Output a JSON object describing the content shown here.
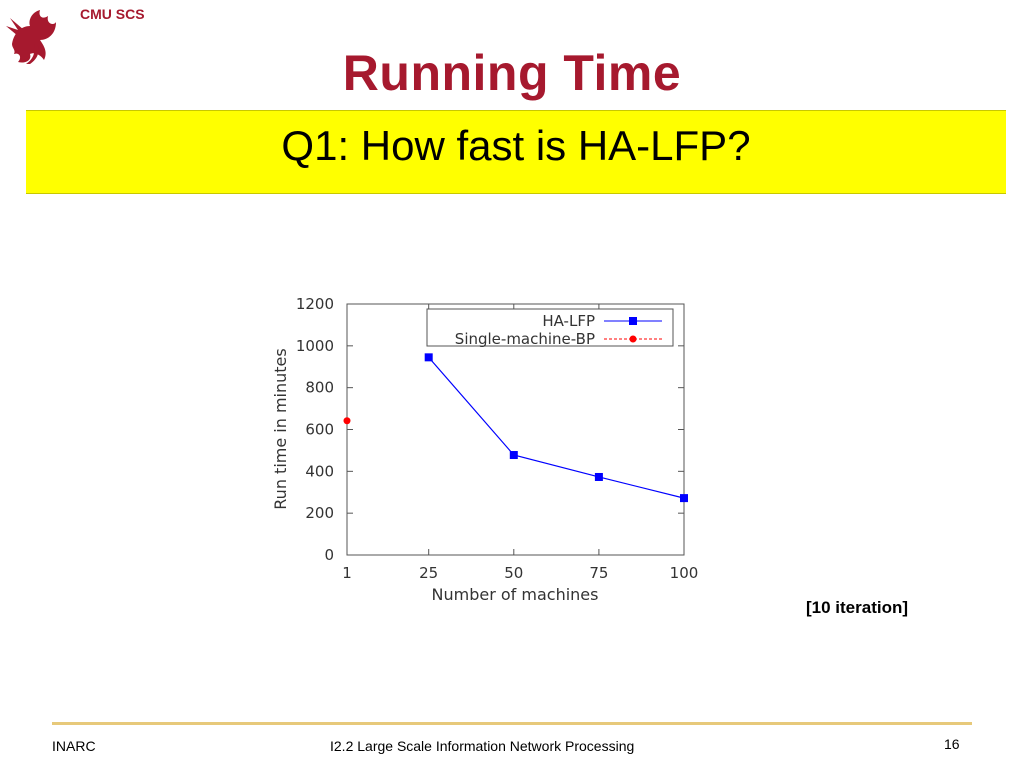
{
  "header": {
    "org": "CMU SCS",
    "title": "Running Time",
    "question": "Q1: How fast is HA-LFP?"
  },
  "colors": {
    "title": "#a6192e",
    "banner": "#ffff00",
    "rule": "#e7c97a",
    "ha_lfp": "#0000ff",
    "single_bp": "#ff0000"
  },
  "chart_data": {
    "type": "line",
    "xlabel": "Number of machines",
    "ylabel": "Run time in minutes",
    "x_ticks": [
      "1",
      "25",
      "50",
      "75",
      "100"
    ],
    "y_ticks": [
      "0",
      "200",
      "400",
      "600",
      "800",
      "1000",
      "1200"
    ],
    "xlim": [
      1,
      100
    ],
    "ylim": [
      0,
      1200
    ],
    "grid": false,
    "legend_position": "top-right",
    "series": [
      {
        "name": "HA-LFP",
        "marker": "square",
        "color": "#0000ff",
        "x": [
          25,
          50,
          75,
          100
        ],
        "y": [
          945,
          478,
          373,
          272
        ]
      },
      {
        "name": "Single-machine-BP",
        "marker": "circle",
        "color": "#ff0000",
        "x": [
          1
        ],
        "y": [
          642
        ]
      }
    ]
  },
  "note": "[10 iteration]",
  "footer": {
    "left": "INARC",
    "center": "I2.2 Large Scale Information Network Processing",
    "page": "16"
  }
}
